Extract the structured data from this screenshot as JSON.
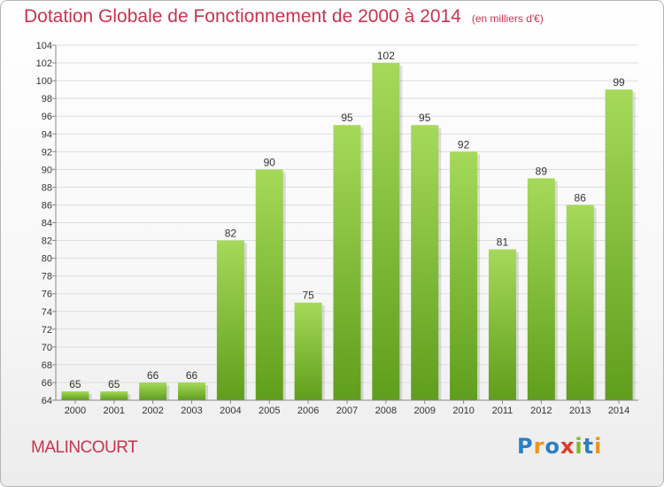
{
  "header": {
    "title": "Dotation Globale de Fonctionnement de 2000 à 2014",
    "unit": "(en milliers d'€)"
  },
  "commune": "MALINCOURT",
  "brand": {
    "name": "Proxiti",
    "colors": [
      "#2f7fc0",
      "#e7951e",
      "#2f7fc0",
      "#e33a2a",
      "#7fba2a",
      "#2f7fc0",
      "#e7951e"
    ]
  },
  "colors": {
    "title": "#c8334f",
    "bar_top": "#a6d95a",
    "bar_bottom": "#5f9e1c",
    "grid": "#dddddd"
  },
  "chart_data": {
    "type": "bar",
    "categories": [
      "2000",
      "2001",
      "2002",
      "2003",
      "2004",
      "2005",
      "2006",
      "2007",
      "2008",
      "2009",
      "2010",
      "2011",
      "2012",
      "2013",
      "2014"
    ],
    "values": [
      65,
      65,
      66,
      66,
      82,
      90,
      75,
      95,
      102,
      95,
      92,
      81,
      89,
      86,
      99
    ],
    "ylim": [
      64,
      104
    ],
    "yticks": [
      64,
      66,
      68,
      70,
      72,
      74,
      76,
      78,
      80,
      82,
      84,
      86,
      88,
      90,
      92,
      94,
      96,
      98,
      100,
      102,
      104
    ],
    "grid": true,
    "data_labels": true
  }
}
